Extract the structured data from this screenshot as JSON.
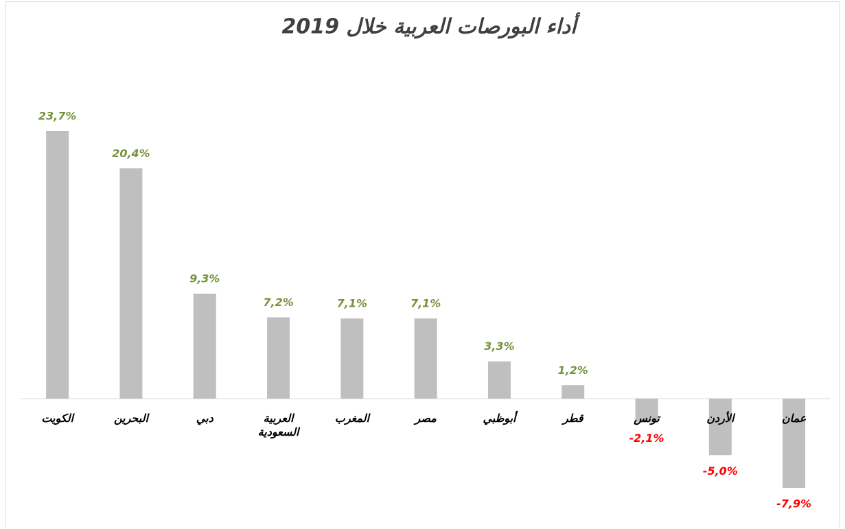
{
  "chart_data": {
    "type": "bar",
    "title": "أداء البورصات العربية خلال 2019",
    "categories": [
      "الكويت",
      "البحرين",
      "دبي",
      "العربية السعودية",
      "المغرب",
      "مصر",
      "أبوظبي",
      "قطر",
      "تونس",
      "الأردن",
      "عمان"
    ],
    "values": [
      23.7,
      20.4,
      9.3,
      7.2,
      7.1,
      7.1,
      3.3,
      1.2,
      -2.1,
      -5.0,
      -7.9
    ],
    "value_labels": [
      "23,7%",
      "20,4%",
      "9,3%",
      "7,2%",
      "7,1%",
      "7,1%",
      "3,3%",
      "1,2%",
      "-2,1%",
      "-5,0%",
      "-7,9%"
    ],
    "color": "#bfbfbf",
    "positive_label_color": "#76923c",
    "negative_label_color": "#ff0000"
  }
}
